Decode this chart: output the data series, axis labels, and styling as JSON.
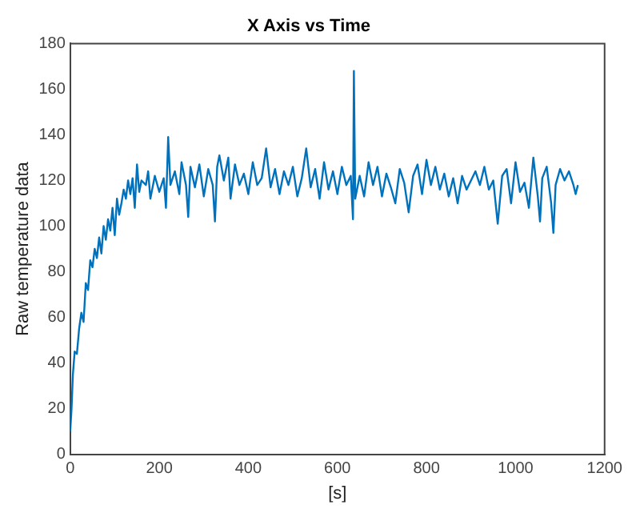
{
  "chart_data": {
    "type": "line",
    "title": "X Axis vs Time",
    "xlabel": "[s]",
    "ylabel": "Raw temperature data",
    "xlim": [
      0,
      1200
    ],
    "xticks": [
      0,
      200,
      400,
      600,
      800,
      1000,
      1200
    ],
    "ylim": [
      0,
      180
    ],
    "yticks": [
      0,
      20,
      40,
      60,
      80,
      100,
      120,
      140,
      160,
      180
    ],
    "grid": false,
    "legend": false,
    "marker": "none",
    "line_style": "solid",
    "series": [
      {
        "color": "#0072bd",
        "x": [
          0,
          3,
          6,
          10,
          15,
          20,
          25,
          30,
          35,
          40,
          45,
          50,
          55,
          60,
          65,
          70,
          75,
          80,
          85,
          90,
          95,
          100,
          105,
          110,
          115,
          120,
          125,
          130,
          135,
          140,
          145,
          150,
          155,
          160,
          170,
          175,
          180,
          190,
          200,
          210,
          215,
          220,
          225,
          235,
          245,
          250,
          260,
          265,
          270,
          280,
          290,
          300,
          310,
          320,
          325,
          330,
          335,
          345,
          355,
          360,
          370,
          380,
          390,
          400,
          410,
          420,
          430,
          440,
          450,
          460,
          470,
          480,
          490,
          500,
          510,
          520,
          530,
          540,
          550,
          560,
          570,
          580,
          590,
          600,
          610,
          620,
          630,
          635,
          637,
          640,
          650,
          660,
          670,
          680,
          690,
          700,
          710,
          720,
          730,
          740,
          750,
          760,
          770,
          780,
          790,
          800,
          810,
          820,
          830,
          840,
          850,
          860,
          870,
          880,
          890,
          900,
          910,
          920,
          930,
          940,
          950,
          960,
          970,
          980,
          990,
          1000,
          1010,
          1020,
          1030,
          1040,
          1050,
          1055,
          1060,
          1070,
          1080,
          1085,
          1090,
          1100,
          1110,
          1120,
          1130,
          1135,
          1140
        ],
        "values": [
          10,
          20,
          35,
          45,
          44,
          55,
          62,
          58,
          75,
          72,
          85,
          82,
          90,
          86,
          95,
          88,
          100,
          94,
          103,
          98,
          108,
          96,
          112,
          105,
          110,
          116,
          112,
          120,
          114,
          121,
          108,
          127,
          115,
          120,
          118,
          124,
          112,
          122,
          115,
          121,
          108,
          139,
          118,
          124,
          114,
          128,
          118,
          104,
          126,
          117,
          127,
          113,
          125,
          118,
          102,
          126,
          131,
          120,
          130,
          112,
          127,
          118,
          123,
          114,
          128,
          118,
          121,
          134,
          117,
          125,
          114,
          124,
          118,
          126,
          113,
          121,
          134,
          117,
          125,
          112,
          128,
          116,
          124,
          114,
          126,
          118,
          122,
          103,
          168,
          112,
          122,
          113,
          128,
          118,
          126,
          113,
          123,
          117,
          110,
          125,
          119,
          106,
          122,
          127,
          114,
          129,
          118,
          126,
          116,
          123,
          113,
          121,
          110,
          122,
          116,
          120,
          124,
          118,
          126,
          116,
          120,
          101,
          122,
          125,
          110,
          128,
          115,
          119,
          108,
          130,
          113,
          102,
          121,
          126,
          110,
          97,
          118,
          125,
          120,
          124,
          118,
          114,
          118
        ]
      }
    ]
  }
}
